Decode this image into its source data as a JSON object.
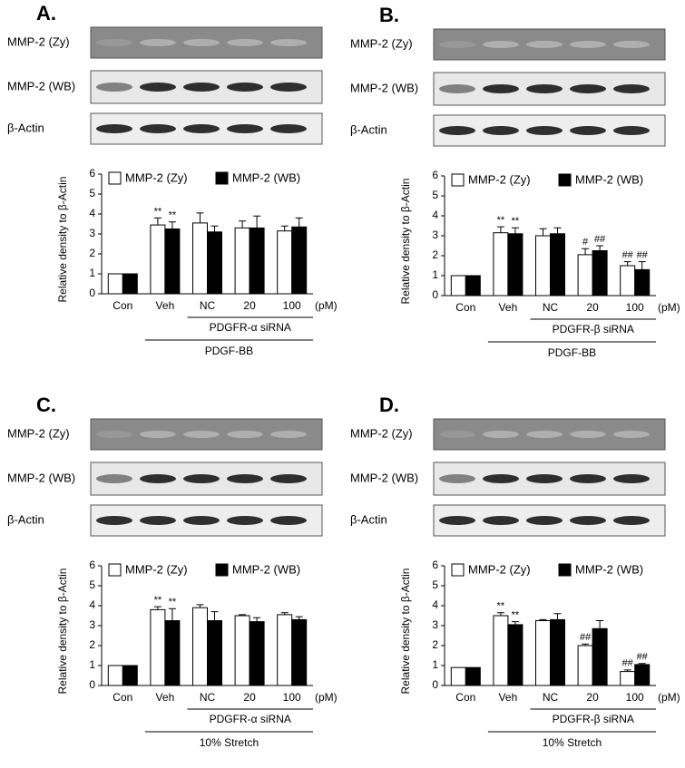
{
  "chart_data": [
    {
      "type": "bar",
      "panel_label": "A.",
      "blot_labels": [
        "MMP-2 (Zy)",
        "MMP-2 (WB)",
        "β-Actin"
      ],
      "ylabel": "Relative density to β-Actin",
      "categories": [
        "Con",
        "Veh",
        "NC",
        "20",
        "100"
      ],
      "unit_label": "(pM)",
      "group_label": "PDGFR-α siRNA",
      "treatment_label": "PDGF-BB",
      "ylim": [
        0,
        6
      ],
      "yticks": [
        0,
        1,
        2,
        3,
        4,
        5,
        6
      ],
      "grid": false,
      "series": [
        {
          "name": "MMP-2 (Zy)",
          "color": "#ffffff",
          "values": [
            1,
            3.45,
            3.55,
            3.3,
            3.15
          ],
          "errors": [
            null,
            0.35,
            0.5,
            0.35,
            0.25
          ],
          "annotations": [
            null,
            "**",
            null,
            null,
            null
          ]
        },
        {
          "name": "MMP-2 (WB)",
          "color": "#000000",
          "values": [
            1,
            3.25,
            3.1,
            3.3,
            3.35
          ],
          "errors": [
            null,
            0.35,
            0.3,
            0.6,
            0.45
          ],
          "annotations": [
            null,
            "**",
            null,
            null,
            null
          ]
        }
      ]
    },
    {
      "type": "bar",
      "panel_label": "B.",
      "blot_labels": [
        "MMP-2 (Zy)",
        "MMP-2 (WB)",
        "β-Actin"
      ],
      "ylabel": "Relative density to β-Actin",
      "categories": [
        "Con",
        "Veh",
        "NC",
        "20",
        "100"
      ],
      "unit_label": "(pM)",
      "group_label": "PDGFR-β siRNA",
      "treatment_label": "PDGF-BB",
      "ylim": [
        0,
        6
      ],
      "yticks": [
        0,
        1,
        2,
        3,
        4,
        5,
        6
      ],
      "grid": false,
      "series": [
        {
          "name": "MMP-2 (Zy)",
          "color": "#ffffff",
          "values": [
            1,
            3.15,
            3.0,
            2.05,
            1.5
          ],
          "errors": [
            null,
            0.3,
            0.35,
            0.3,
            0.2
          ],
          "annotations": [
            null,
            "**",
            null,
            "#",
            "##"
          ]
        },
        {
          "name": "MMP-2 (WB)",
          "color": "#000000",
          "values": [
            1,
            3.1,
            3.1,
            2.25,
            1.3
          ],
          "errors": [
            null,
            0.3,
            0.3,
            0.25,
            0.4
          ],
          "annotations": [
            null,
            "**",
            null,
            "##",
            "##"
          ]
        }
      ]
    },
    {
      "type": "bar",
      "panel_label": "C.",
      "blot_labels": [
        "MMP-2 (Zy)",
        "MMP-2 (WB)",
        "β-Actin"
      ],
      "ylabel": "Relative density to β-Actin",
      "categories": [
        "Con",
        "Veh",
        "NC",
        "20",
        "100"
      ],
      "unit_label": "(pM)",
      "group_label": "PDGFR-α siRNA",
      "treatment_label": "10% Stretch",
      "ylim": [
        0,
        6
      ],
      "yticks": [
        0,
        1,
        2,
        3,
        4,
        5,
        6
      ],
      "grid": false,
      "series": [
        {
          "name": "MMP-2 (Zy)",
          "color": "#ffffff",
          "values": [
            1,
            3.8,
            3.9,
            3.5,
            3.55
          ],
          "errors": [
            null,
            0.15,
            0.15,
            0.05,
            0.1
          ],
          "annotations": [
            null,
            "**",
            null,
            null,
            null
          ]
        },
        {
          "name": "MMP-2 (WB)",
          "color": "#000000",
          "values": [
            1,
            3.25,
            3.25,
            3.2,
            3.3
          ],
          "errors": [
            null,
            0.6,
            0.45,
            0.2,
            0.15
          ],
          "annotations": [
            null,
            "**",
            null,
            null,
            null
          ]
        }
      ]
    },
    {
      "type": "bar",
      "panel_label": "D.",
      "blot_labels": [
        "MMP-2 (Zy)",
        "MMP-2 (WB)",
        "β-Actin"
      ],
      "ylabel": "Relative density to β-Actin",
      "categories": [
        "Con",
        "Veh",
        "NC",
        "20",
        "100"
      ],
      "unit_label": "(pM)",
      "group_label": "PDGFR-β siRNA",
      "treatment_label": "10% Stretch",
      "ylim": [
        0,
        6
      ],
      "yticks": [
        0,
        1,
        2,
        3,
        4,
        5,
        6
      ],
      "grid": false,
      "series": [
        {
          "name": "MMP-2 (Zy)",
          "color": "#ffffff",
          "values": [
            0.9,
            3.5,
            3.25,
            2.0,
            0.7
          ],
          "errors": [
            null,
            0.15,
            0.05,
            0.08,
            0.08
          ],
          "annotations": [
            null,
            "**",
            null,
            "##",
            "##"
          ]
        },
        {
          "name": "MMP-2 (WB)",
          "color": "#000000",
          "values": [
            0.9,
            3.05,
            3.3,
            2.85,
            1.05
          ],
          "errors": [
            null,
            0.15,
            0.3,
            0.4,
            0.05
          ],
          "annotations": [
            null,
            "**",
            null,
            null,
            "##"
          ]
        }
      ]
    }
  ]
}
